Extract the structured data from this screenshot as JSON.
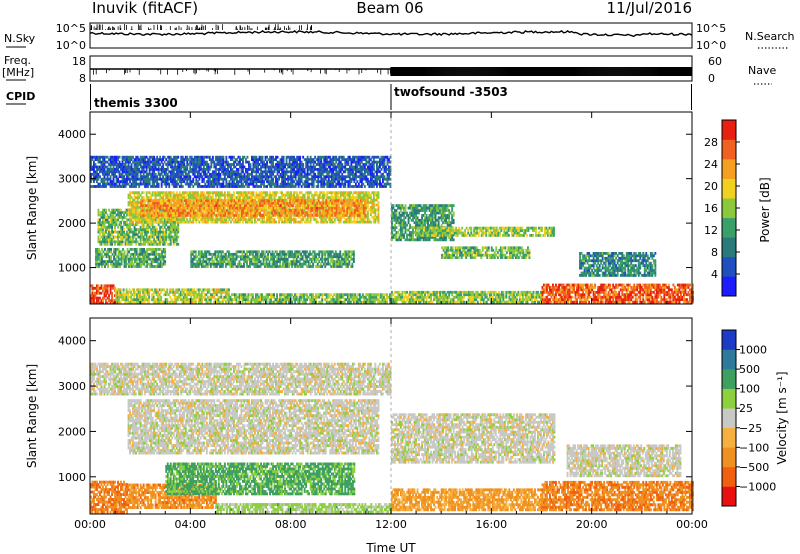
{
  "header": {
    "station": "Inuvik (fitACF)",
    "beam": "Beam 06",
    "date": "11/Jul/2016"
  },
  "left_labels": {
    "nsky": "N.Sky",
    "freq_line1": "Freq.",
    "freq_line2": "[MHz]",
    "cpid": "CPID"
  },
  "right_labels": {
    "nsearch": "N.Search",
    "nave": "Nave"
  },
  "strip_nsky": {
    "left_ticks": [
      "10^5",
      "10^0"
    ],
    "right_ticks": [
      "10^5",
      "10^0"
    ]
  },
  "strip_freq": {
    "left_ticks": [
      "18",
      "8"
    ],
    "right_ticks": [
      "60",
      "0"
    ]
  },
  "cpid": {
    "segments": [
      {
        "label": "themis 3300",
        "start_hour": 0
      },
      {
        "label": "twofsound -3503",
        "start_hour": 12
      }
    ]
  },
  "colors": {
    "power": [
      "#1c1cff",
      "#2050c0",
      "#2a7a7a",
      "#3aa06a",
      "#8cc83c",
      "#f0d020",
      "#f5a020",
      "#f06020",
      "#e82010"
    ],
    "velocity": [
      "#e81010",
      "#f06010",
      "#f09020",
      "#f5b040",
      "#c8c8c4",
      "#8cd040",
      "#3ea060",
      "#2d7a9a",
      "#1c3cc8"
    ]
  },
  "chart_data": [
    {
      "type": "heatmap",
      "name": "power",
      "x": {
        "label": "",
        "range_hours": [
          0,
          24
        ],
        "tick_labels": [
          "00:00",
          "04:00",
          "08:00",
          "12:00",
          "16:00",
          "20:00",
          "00:00"
        ]
      },
      "y": {
        "label": "Slant Range [km]",
        "range": [
          180,
          4500
        ],
        "ticks": [
          1000,
          2000,
          3000,
          4000
        ]
      },
      "colorbar": {
        "label": "Power [dB]",
        "range": [
          0,
          32
        ],
        "ticks": [
          4,
          8,
          12,
          16,
          20,
          24,
          28
        ]
      },
      "bands": [
        {
          "t0": 0.0,
          "t1": 1.0,
          "r0": 180,
          "r1": 600,
          "level": 0.95
        },
        {
          "t0": 1.0,
          "t1": 5.5,
          "r0": 200,
          "r1": 500,
          "level": 0.55
        },
        {
          "t0": 5.5,
          "t1": 12.0,
          "r0": 200,
          "r1": 400,
          "level": 0.45
        },
        {
          "t0": 12.0,
          "t1": 18.0,
          "r0": 200,
          "r1": 450,
          "level": 0.5
        },
        {
          "t0": 18.0,
          "t1": 24.0,
          "r0": 200,
          "r1": 600,
          "level": 0.9
        },
        {
          "t0": 0.3,
          "t1": 3.5,
          "r0": 1500,
          "r1": 2300,
          "level": 0.45
        },
        {
          "t0": 1.5,
          "t1": 11.5,
          "r0": 2000,
          "r1": 2700,
          "level": 0.6
        },
        {
          "t0": 2.0,
          "t1": 11.0,
          "r0": 2150,
          "r1": 2500,
          "level": 0.78
        },
        {
          "t0": 0.2,
          "t1": 3.0,
          "r0": 1000,
          "r1": 1400,
          "level": 0.4
        },
        {
          "t0": 4.0,
          "t1": 10.5,
          "r0": 1000,
          "r1": 1350,
          "level": 0.35
        },
        {
          "t0": 12.0,
          "t1": 14.5,
          "r0": 1600,
          "r1": 2400,
          "level": 0.35
        },
        {
          "t0": 13.0,
          "t1": 18.5,
          "r0": 1700,
          "r1": 1900,
          "level": 0.5
        },
        {
          "t0": 14.0,
          "t1": 17.5,
          "r0": 1200,
          "r1": 1450,
          "level": 0.45
        },
        {
          "t0": 19.5,
          "t1": 22.5,
          "r0": 800,
          "r1": 1300,
          "level": 0.3
        },
        {
          "t0": 0.0,
          "t1": 12.0,
          "r0": 2800,
          "r1": 3500,
          "level": 0.15
        },
        {
          "t0": 4.0,
          "t1": 4.3,
          "r0": 3300,
          "r1": 3450,
          "level": 0.2
        }
      ]
    },
    {
      "type": "heatmap",
      "name": "velocity",
      "x": {
        "label": "Time UT",
        "range_hours": [
          0,
          24
        ],
        "tick_labels": [
          "00:00",
          "04:00",
          "08:00",
          "12:00",
          "16:00",
          "20:00",
          "00:00"
        ]
      },
      "y": {
        "label": "Slant Range [km]",
        "range": [
          180,
          4500
        ],
        "ticks": [
          1000,
          2000,
          3000,
          4000
        ]
      },
      "colorbar": {
        "label": "Velocity [m s⁻¹]",
        "tick_labels": [
          "1000",
          "500",
          "100",
          "25",
          "−25",
          "−100",
          "−500",
          "−1000"
        ]
      },
      "bands": [
        {
          "t0": 0.0,
          "t1": 1.5,
          "r0": 200,
          "r1": 900,
          "level": 0.2
        },
        {
          "t0": 1.5,
          "t1": 5.0,
          "r0": 300,
          "r1": 800,
          "level": 0.25
        },
        {
          "t0": 5.0,
          "t1": 12.0,
          "r0": 200,
          "r1": 400,
          "level": 0.6
        },
        {
          "t0": 12.0,
          "t1": 18.0,
          "r0": 250,
          "r1": 700,
          "level": 0.3
        },
        {
          "t0": 18.0,
          "t1": 24.0,
          "r0": 250,
          "r1": 900,
          "level": 0.22
        },
        {
          "t0": 1.5,
          "t1": 11.5,
          "r0": 1500,
          "r1": 2700,
          "level": 0.5
        },
        {
          "t0": 12.0,
          "t1": 18.5,
          "r0": 1300,
          "r1": 2400,
          "level": 0.5
        },
        {
          "t0": 3.0,
          "t1": 10.5,
          "r0": 600,
          "r1": 1300,
          "level": 0.72
        },
        {
          "t0": 0.0,
          "t1": 12.0,
          "r0": 2800,
          "r1": 3500,
          "level": 0.5
        },
        {
          "t0": 19.0,
          "t1": 23.5,
          "r0": 1000,
          "r1": 1700,
          "level": 0.5
        }
      ]
    }
  ]
}
